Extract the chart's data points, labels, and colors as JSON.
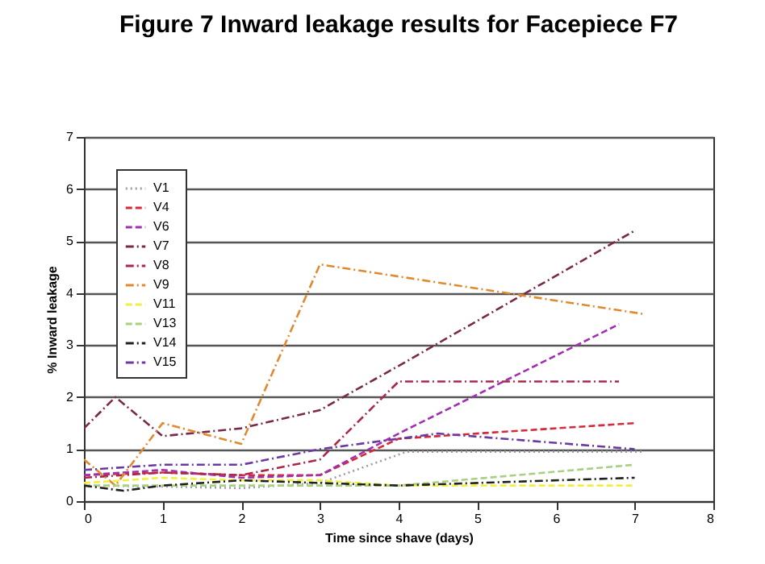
{
  "chart_data": {
    "type": "line",
    "title": "Figure 7 Inward leakage results for Facepiece F7",
    "xlabel": "Time since shave (days)",
    "ylabel": "% Inward leakage",
    "xlim": [
      0,
      8
    ],
    "xticks": [
      0,
      1,
      2,
      3,
      4,
      5,
      6,
      7,
      8
    ],
    "ylim": [
      0,
      7
    ],
    "yticks": [
      0,
      1,
      2,
      3,
      4,
      5,
      6,
      7
    ],
    "grid": "y",
    "legend": "top left",
    "marker": "none",
    "series": [
      {
        "name": "V1",
        "color": "#9a9aa8",
        "line_style": "dotted",
        "x": [
          0,
          1,
          2,
          3,
          4.1,
          7.1
        ],
        "values": [
          0.3,
          0.28,
          0.25,
          0.35,
          0.95,
          0.95
        ]
      },
      {
        "name": "V4",
        "color": "#d42a3a",
        "line_style": "dashed",
        "x": [
          0,
          1,
          2,
          3,
          4,
          7
        ],
        "values": [
          0.5,
          0.55,
          0.5,
          0.5,
          1.2,
          1.5
        ]
      },
      {
        "name": "V6",
        "color": "#a030b0",
        "line_style": "dashed",
        "x": [
          0,
          1,
          2,
          3,
          4,
          6.8
        ],
        "values": [
          0.5,
          0.6,
          0.45,
          0.5,
          1.3,
          3.4
        ]
      },
      {
        "name": "V7",
        "color": "#7a2a48",
        "line_style": "dashdot",
        "x": [
          0,
          0.4,
          1,
          2,
          3,
          4,
          7
        ],
        "values": [
          1.4,
          2.0,
          1.25,
          1.4,
          1.75,
          2.6,
          5.2
        ]
      },
      {
        "name": "V8",
        "color": "#a8284a",
        "line_style": "dashdot",
        "x": [
          0,
          1,
          2,
          3,
          4,
          6.8
        ],
        "values": [
          0.45,
          0.55,
          0.5,
          0.8,
          2.3,
          2.3
        ]
      },
      {
        "name": "V9",
        "color": "#e08a30",
        "line_style": "dashdot",
        "x": [
          0,
          0.4,
          1,
          2,
          3,
          7.1
        ],
        "values": [
          0.8,
          0.3,
          1.5,
          1.1,
          4.55,
          3.6
        ]
      },
      {
        "name": "V11",
        "color": "#f0f040",
        "line_style": "dashed",
        "x": [
          0,
          1,
          2,
          3,
          4,
          7
        ],
        "values": [
          0.35,
          0.45,
          0.4,
          0.4,
          0.3,
          0.3
        ]
      },
      {
        "name": "V13",
        "color": "#a8d080",
        "line_style": "dashed",
        "x": [
          0,
          1,
          2,
          3,
          4,
          7
        ],
        "values": [
          0.3,
          0.3,
          0.3,
          0.3,
          0.3,
          0.7
        ]
      },
      {
        "name": "V14",
        "color": "#202020",
        "line_style": "dashdot",
        "x": [
          0,
          0.5,
          1,
          2,
          3,
          4,
          7
        ],
        "values": [
          0.3,
          0.2,
          0.3,
          0.4,
          0.35,
          0.3,
          0.45
        ]
      },
      {
        "name": "V15",
        "color": "#6a3aa0",
        "line_style": "dashdot",
        "x": [
          0,
          1,
          2,
          3,
          4.5,
          7
        ],
        "values": [
          0.6,
          0.7,
          0.7,
          1.0,
          1.3,
          1.0
        ]
      }
    ]
  }
}
